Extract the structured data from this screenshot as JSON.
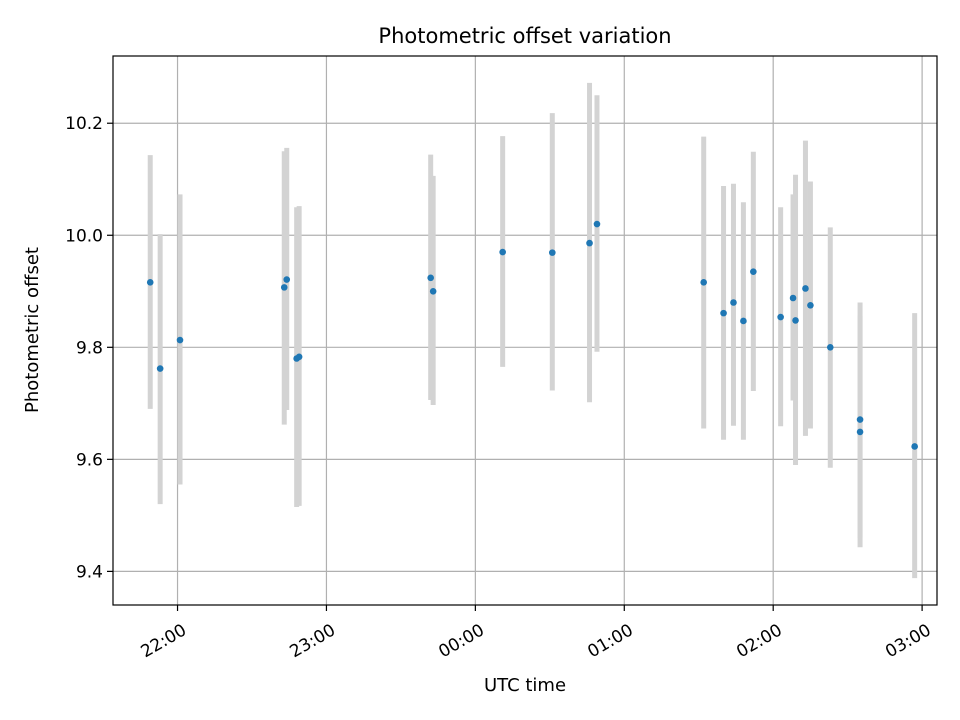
{
  "chart_data": {
    "type": "scatter",
    "title": "Photometric offset variation",
    "xlabel": "UTC time",
    "ylabel": "Photometric offset",
    "x_axis": "time (hours since 21:00 UTC, reference only for ticks)",
    "xlim": [
      "21:34",
      "03:06"
    ],
    "ylim": [
      9.34,
      10.32
    ],
    "xticks": [
      "22:00",
      "23:00",
      "00:00",
      "01:00",
      "02:00",
      "03:00"
    ],
    "yticks": [
      9.4,
      9.6,
      9.8,
      10.0,
      10.2
    ],
    "ytick_labels": [
      "9.4",
      "9.6",
      "9.8",
      "10.0",
      "10.2"
    ],
    "grid": true,
    "marker_color": "#1f77b4",
    "errorbar_color": "#d3d3d3",
    "points": [
      {
        "t": "21:49",
        "y": 9.916,
        "lo": 9.69,
        "hi": 10.143
      },
      {
        "t": "21:53",
        "y": 9.762,
        "lo": 9.52,
        "hi": 10.002
      },
      {
        "t": "22:01",
        "y": 9.813,
        "lo": 9.555,
        "hi": 10.073
      },
      {
        "t": "22:43",
        "y": 9.907,
        "lo": 9.662,
        "hi": 10.15
      },
      {
        "t": "22:44",
        "y": 9.921,
        "lo": 9.688,
        "hi": 10.156
      },
      {
        "t": "22:48",
        "y": 9.78,
        "lo": 9.515,
        "hi": 10.05
      },
      {
        "t": "22:49",
        "y": 9.783,
        "lo": 9.517,
        "hi": 10.052
      },
      {
        "t": "23:42",
        "y": 9.924,
        "lo": 9.706,
        "hi": 10.144
      },
      {
        "t": "23:43",
        "y": 9.9,
        "lo": 9.697,
        "hi": 10.106
      },
      {
        "t": "00:11",
        "y": 9.97,
        "lo": 9.765,
        "hi": 10.177
      },
      {
        "t": "00:31",
        "y": 9.969,
        "lo": 9.723,
        "hi": 10.218
      },
      {
        "t": "00:46",
        "y": 9.986,
        "lo": 9.702,
        "hi": 10.272
      },
      {
        "t": "00:49",
        "y": 10.02,
        "lo": 9.792,
        "hi": 10.25
      },
      {
        "t": "01:32",
        "y": 9.916,
        "lo": 9.655,
        "hi": 10.176
      },
      {
        "t": "01:40",
        "y": 9.861,
        "lo": 9.635,
        "hi": 10.088
      },
      {
        "t": "01:44",
        "y": 9.88,
        "lo": 9.66,
        "hi": 10.092
      },
      {
        "t": "01:48",
        "y": 9.847,
        "lo": 9.635,
        "hi": 10.059
      },
      {
        "t": "01:52",
        "y": 9.935,
        "lo": 9.722,
        "hi": 10.149
      },
      {
        "t": "02:03",
        "y": 9.854,
        "lo": 9.659,
        "hi": 10.05
      },
      {
        "t": "02:08",
        "y": 9.888,
        "lo": 9.705,
        "hi": 10.073
      },
      {
        "t": "02:09",
        "y": 9.848,
        "lo": 9.59,
        "hi": 10.108
      },
      {
        "t": "02:13",
        "y": 9.905,
        "lo": 9.642,
        "hi": 10.169
      },
      {
        "t": "02:15",
        "y": 9.875,
        "lo": 9.655,
        "hi": 10.096
      },
      {
        "t": "02:23",
        "y": 9.8,
        "lo": 9.585,
        "hi": 10.014
      },
      {
        "t": "02:35",
        "y": 9.671,
        "lo": 9.46,
        "hi": 9.88
      },
      {
        "t": "02:35",
        "y": 9.649,
        "lo": 9.443,
        "hi": 9.856
      },
      {
        "t": "02:57",
        "y": 9.623,
        "lo": 9.388,
        "hi": 9.861
      }
    ]
  }
}
